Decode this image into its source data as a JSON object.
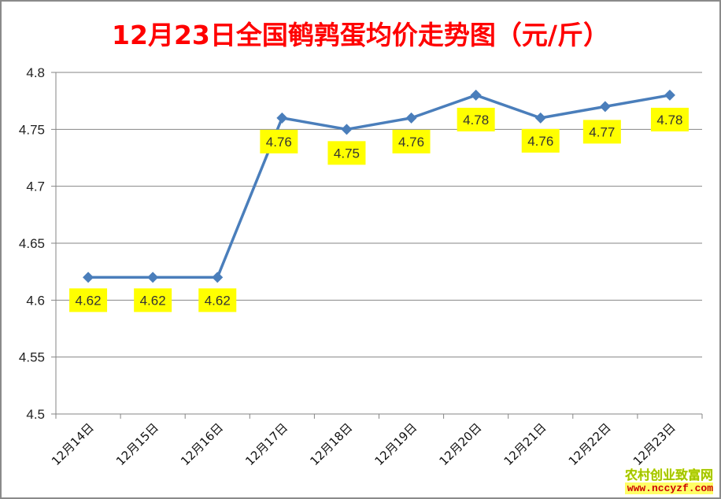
{
  "chart_data": {
    "type": "line",
    "title": "12月23日全国鹌鹑蛋均价走势图（元/斤）",
    "xlabel": "",
    "ylabel": "",
    "categories": [
      "12月14日",
      "12月15日",
      "12月16日",
      "12月17日",
      "12月18日",
      "12月19日",
      "12月20日",
      "12月21日",
      "12月22日",
      "12月23日"
    ],
    "series": [
      {
        "name": "鹌鹑蛋均价",
        "values": [
          4.62,
          4.62,
          4.62,
          4.76,
          4.75,
          4.76,
          4.78,
          4.76,
          4.77,
          4.78
        ],
        "color": "#4a7ebb",
        "marker": "diamond"
      }
    ],
    "data_labels": [
      "4.62",
      "4.62",
      "4.62",
      "4.76",
      "4.75",
      "4.76",
      "4.78",
      "4.76",
      "4.77",
      "4.78"
    ],
    "data_label_bg": "#ffff00",
    "ylim": [
      4.5,
      4.8
    ],
    "yticks": [
      "4.8",
      "4.75",
      "4.7",
      "4.65",
      "4.6",
      "4.55",
      "4.5"
    ],
    "ytick_values": [
      4.8,
      4.75,
      4.7,
      4.65,
      4.6,
      4.55,
      4.5
    ],
    "grid": true,
    "legend": "none"
  },
  "header": {
    "title": "12月23日全国鹌鹑蛋均价走势图（元/斤）"
  },
  "watermark": {
    "name": "农村创业致富网",
    "url": "www.nccyzf.com"
  }
}
